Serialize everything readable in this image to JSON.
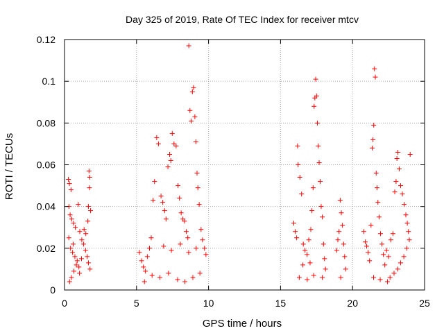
{
  "chart_data": {
    "type": "scatter",
    "title": "Day 325 of 2019, Rate Of TEC Index for receiver mtcv",
    "xlabel": "GPS time / hours",
    "ylabel": "ROTI / TECUs",
    "xlim": [
      0,
      25
    ],
    "ylim": [
      0,
      0.12
    ],
    "grid": true,
    "legend": "none",
    "marker": "+",
    "color": "#ff0000",
    "x_ticks": [
      0,
      5,
      10,
      15,
      20,
      25
    ],
    "x_tick_labels": [
      "0",
      "5",
      "10",
      "15",
      "20",
      "25"
    ],
    "y_ticks": [
      0,
      0.02,
      0.04,
      0.06,
      0.08,
      0.1,
      0.12
    ],
    "y_tick_labels": [
      "0",
      "0.02",
      "0.04",
      "0.06",
      "0.08",
      "0.1",
      "0.12"
    ],
    "series": [
      {
        "points": [
          [
            0.27,
            0.053
          ],
          [
            0.34,
            0.051
          ],
          [
            0.45,
            0.048
          ],
          [
            0.31,
            0.04
          ],
          [
            0.39,
            0.036
          ],
          [
            0.5,
            0.034
          ],
          [
            0.62,
            0.032
          ],
          [
            0.75,
            0.03
          ],
          [
            0.3,
            0.025
          ],
          [
            0.42,
            0.02
          ],
          [
            0.56,
            0.018
          ],
          [
            0.72,
            0.016
          ],
          [
            0.88,
            0.014
          ],
          [
            1.0,
            0.011
          ],
          [
            0.65,
            0.009
          ],
          [
            0.48,
            0.006
          ],
          [
            0.35,
            0.004
          ],
          [
            0.95,
            0.041
          ],
          [
            1.06,
            0.028
          ],
          [
            1.2,
            0.024
          ],
          [
            1.32,
            0.022
          ],
          [
            1.46,
            0.019
          ],
          [
            1.58,
            0.016
          ],
          [
            1.66,
            0.013
          ],
          [
            1.77,
            0.01
          ],
          [
            1.7,
            0.057
          ],
          [
            1.75,
            0.054
          ],
          [
            1.73,
            0.049
          ],
          [
            1.66,
            0.04
          ],
          [
            1.81,
            0.038
          ],
          [
            1.62,
            0.033
          ],
          [
            1.48,
            0.027
          ],
          [
            1.36,
            0.029
          ],
          [
            1.18,
            0.015
          ],
          [
            1.04,
            0.008
          ],
          [
            0.82,
            0.012
          ],
          [
            0.6,
            0.022
          ],
          [
            5.2,
            0.018
          ],
          [
            5.35,
            0.014
          ],
          [
            5.48,
            0.011
          ],
          [
            5.62,
            0.009
          ],
          [
            5.75,
            0.016
          ],
          [
            5.9,
            0.02
          ],
          [
            6.02,
            0.025
          ],
          [
            6.15,
            0.043
          ],
          [
            6.25,
            0.052
          ],
          [
            6.4,
            0.073
          ],
          [
            6.52,
            0.07
          ],
          [
            6.7,
            0.045
          ],
          [
            6.82,
            0.042
          ],
          [
            6.95,
            0.038
          ],
          [
            7.05,
            0.034
          ],
          [
            7.18,
            0.059
          ],
          [
            7.3,
            0.065
          ],
          [
            7.38,
            0.062
          ],
          [
            7.48,
            0.075
          ],
          [
            7.6,
            0.07
          ],
          [
            7.75,
            0.069
          ],
          [
            7.88,
            0.05
          ],
          [
            7.98,
            0.044
          ],
          [
            8.1,
            0.037
          ],
          [
            8.22,
            0.034
          ],
          [
            8.33,
            0.033
          ],
          [
            8.45,
            0.028
          ],
          [
            8.56,
            0.025
          ],
          [
            8.63,
            0.117
          ],
          [
            8.71,
            0.086
          ],
          [
            8.8,
            0.081
          ],
          [
            8.88,
            0.095
          ],
          [
            8.96,
            0.097
          ],
          [
            9.05,
            0.083
          ],
          [
            9.12,
            0.071
          ],
          [
            9.2,
            0.056
          ],
          [
            9.26,
            0.049
          ],
          [
            9.35,
            0.041
          ],
          [
            9.48,
            0.029
          ],
          [
            9.58,
            0.024
          ],
          [
            9.72,
            0.02
          ],
          [
            9.82,
            0.017
          ],
          [
            5.55,
            0.004
          ],
          [
            6.08,
            0.007
          ],
          [
            6.62,
            0.006
          ],
          [
            7.22,
            0.008
          ],
          [
            7.85,
            0.005
          ],
          [
            8.36,
            0.004
          ],
          [
            8.91,
            0.006
          ],
          [
            9.4,
            0.008
          ],
          [
            6.88,
            0.021
          ],
          [
            7.42,
            0.019
          ],
          [
            8.04,
            0.022
          ],
          [
            8.62,
            0.018
          ],
          [
            9.14,
            0.02
          ],
          [
            15.92,
            0.032
          ],
          [
            16.02,
            0.028
          ],
          [
            16.12,
            0.025
          ],
          [
            16.18,
            0.069
          ],
          [
            16.22,
            0.06
          ],
          [
            16.34,
            0.054
          ],
          [
            16.46,
            0.046
          ],
          [
            16.58,
            0.022
          ],
          [
            16.7,
            0.019
          ],
          [
            16.84,
            0.017
          ],
          [
            16.96,
            0.024
          ],
          [
            17.1,
            0.029
          ],
          [
            17.18,
            0.038
          ],
          [
            17.26,
            0.049
          ],
          [
            17.33,
            0.088
          ],
          [
            17.38,
            0.092
          ],
          [
            17.44,
            0.101
          ],
          [
            17.5,
            0.093
          ],
          [
            17.56,
            0.08
          ],
          [
            17.62,
            0.069
          ],
          [
            17.68,
            0.061
          ],
          [
            17.75,
            0.052
          ],
          [
            17.82,
            0.04
          ],
          [
            17.9,
            0.035
          ],
          [
            17.98,
            0.022
          ],
          [
            18.05,
            0.015
          ],
          [
            18.12,
            0.01
          ],
          [
            16.3,
            0.006
          ],
          [
            16.85,
            0.005
          ],
          [
            17.3,
            0.007
          ],
          [
            17.9,
            0.006
          ],
          [
            16.55,
            0.012
          ],
          [
            17.05,
            0.013
          ],
          [
            18.9,
            0.019
          ],
          [
            18.98,
            0.024
          ],
          [
            19.06,
            0.028
          ],
          [
            19.14,
            0.043
          ],
          [
            19.22,
            0.037
          ],
          [
            19.3,
            0.031
          ],
          [
            19.38,
            0.022
          ],
          [
            19.45,
            0.016
          ],
          [
            19.52,
            0.01
          ],
          [
            19.18,
            0.006
          ],
          [
            20.78,
            0.028
          ],
          [
            20.88,
            0.023
          ],
          [
            20.98,
            0.021
          ],
          [
            21.08,
            0.018
          ],
          [
            21.18,
            0.014
          ],
          [
            21.28,
            0.031
          ],
          [
            21.36,
            0.068
          ],
          [
            21.42,
            0.072
          ],
          [
            21.47,
            0.079
          ],
          [
            21.52,
            0.106
          ],
          [
            21.58,
            0.102
          ],
          [
            21.64,
            0.056
          ],
          [
            21.7,
            0.049
          ],
          [
            21.76,
            0.042
          ],
          [
            21.84,
            0.035
          ],
          [
            21.94,
            0.027
          ],
          [
            22.04,
            0.022
          ],
          [
            22.14,
            0.017
          ],
          [
            22.24,
            0.012
          ],
          [
            21.46,
            0.006
          ],
          [
            21.92,
            0.005
          ],
          [
            22.36,
            0.019
          ],
          [
            22.5,
            0.016
          ],
          [
            22.66,
            0.024
          ],
          [
            22.8,
            0.027
          ],
          [
            22.93,
            0.047
          ],
          [
            23.02,
            0.052
          ],
          [
            23.08,
            0.063
          ],
          [
            23.15,
            0.066
          ],
          [
            23.24,
            0.058
          ],
          [
            23.34,
            0.05
          ],
          [
            23.46,
            0.046
          ],
          [
            23.58,
            0.041
          ],
          [
            23.7,
            0.036
          ],
          [
            23.8,
            0.032
          ],
          [
            23.88,
            0.028
          ],
          [
            23.94,
            0.024
          ],
          [
            24.0,
            0.065
          ],
          [
            23.76,
            0.02
          ],
          [
            23.56,
            0.016
          ],
          [
            23.34,
            0.013
          ],
          [
            23.14,
            0.01
          ],
          [
            22.88,
            0.008
          ],
          [
            22.6,
            0.006
          ],
          [
            22.42,
            0.004
          ]
        ]
      }
    ]
  }
}
